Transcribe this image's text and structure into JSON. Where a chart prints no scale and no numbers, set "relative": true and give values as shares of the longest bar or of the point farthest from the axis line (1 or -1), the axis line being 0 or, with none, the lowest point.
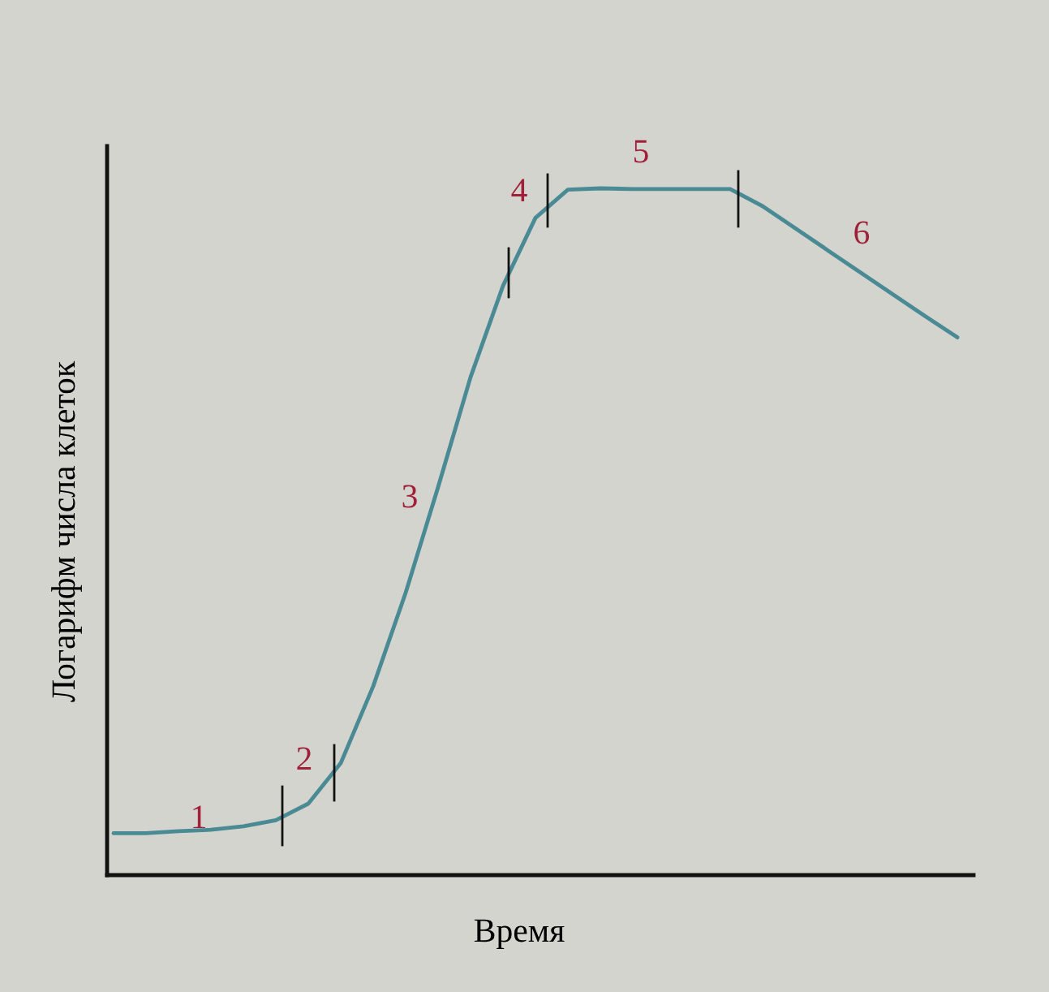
{
  "chart_data": {
    "type": "line",
    "relative": true,
    "categories": [
      null,
      null,
      null,
      null,
      null,
      null,
      null,
      null,
      null,
      null,
      null,
      null,
      null,
      null,
      null,
      null,
      null,
      null,
      null,
      null,
      null,
      null,
      null,
      null,
      null,
      null,
      null
    ],
    "values": [
      0.061,
      0.061,
      0.064,
      0.066,
      0.071,
      0.08,
      0.104,
      0.163,
      0.275,
      0.411,
      0.565,
      0.725,
      0.858,
      0.957,
      0.998,
      1,
      0.999,
      0.999,
      0.999,
      0.999,
      0.974,
      0.942,
      0.91,
      0.878,
      0.846,
      0.814,
      0.783
    ],
    "color": "#4a8a94",
    "xlabel": "Время",
    "ylabel": "Логарифм числа клеток",
    "annotations": [
      "1",
      "2",
      "3",
      "4",
      "5",
      "6"
    ]
  }
}
